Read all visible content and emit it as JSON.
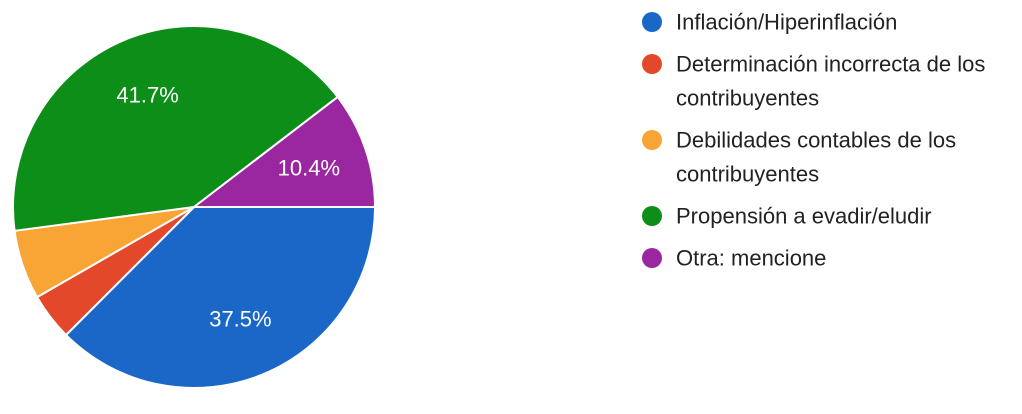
{
  "chart_data": {
    "type": "pie",
    "categories": [
      "Inflación/Hiperinflación",
      "Determinación incorrecta de los contribuyentes",
      "Debilidades contables de los contribuyentes",
      "Propensión a evadir/eludir",
      "Otra: mencione"
    ],
    "values": [
      37.5,
      4.2,
      6.2,
      41.7,
      10.4
    ],
    "data_labels": [
      "37.5%",
      "",
      "",
      "41.7%",
      "10.4%"
    ],
    "colors": [
      "#1a67c8",
      "#e4482a",
      "#f9a535",
      "#0d8e18",
      "#9a26a0"
    ],
    "legend": {
      "placement": "right",
      "items": [
        {
          "lines": [
            "Inflación/Hiperinflación"
          ],
          "color": "#1a67c8"
        },
        {
          "lines": [
            "Determinación incorrecta de los",
            "contribuyentes"
          ],
          "color": "#e4482a"
        },
        {
          "lines": [
            "Debilidades contables de los",
            "contribuyentes"
          ],
          "color": "#f9a535"
        },
        {
          "lines": [
            "Propensión a evadir/eludir"
          ],
          "color": "#0d8e18"
        },
        {
          "lines": [
            "Otra: mencione"
          ],
          "color": "#9a26a0"
        }
      ]
    },
    "title": "",
    "xlabel": "",
    "ylabel": ""
  }
}
